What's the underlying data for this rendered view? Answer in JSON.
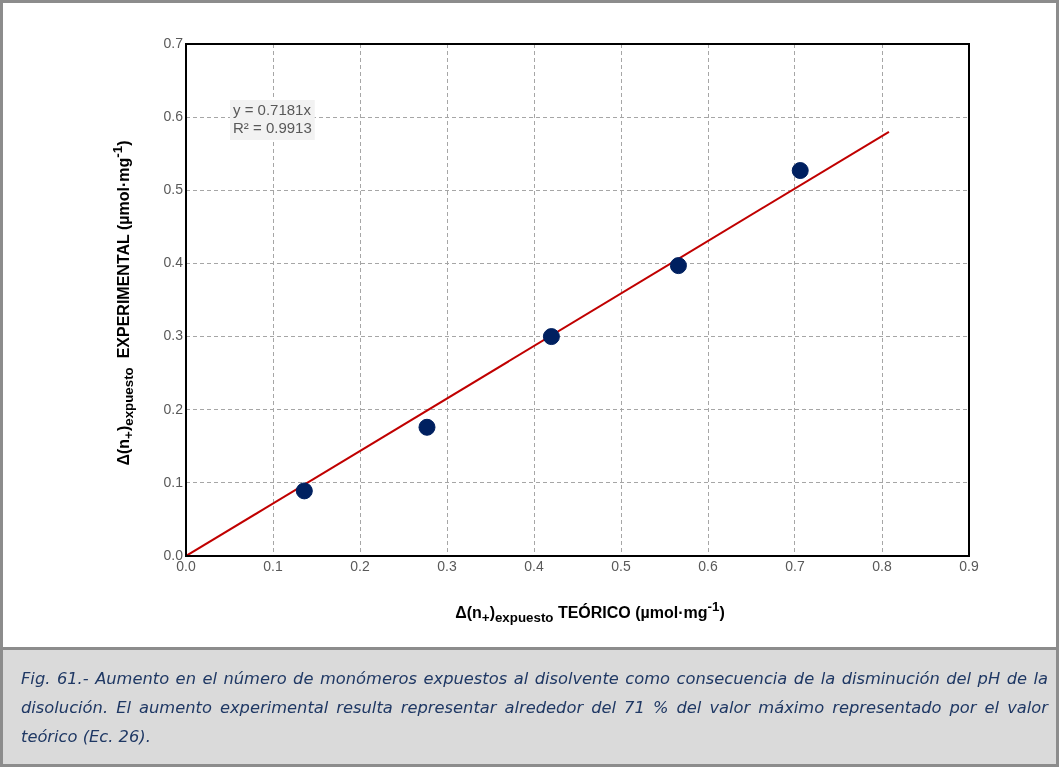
{
  "chart_data": {
    "type": "scatter",
    "xlabel": "Δ(n$_{+}$)$_{expuesto}$ TEÓRICO (µmol·mg$^{-1}$)",
    "ylabel": "Δ(n$_{+}$)$_{expuesto}$  EXPERIMENTAL (µmol·mg$^{-1}$)",
    "xlim": [
      0,
      0.9
    ],
    "xticks": [
      {
        "value": 0,
        "label": "0.0"
      },
      0.1,
      0.2,
      0.3,
      0.4,
      0.5,
      0.6,
      0.7,
      0.8,
      0.9
    ],
    "ylim": [
      0,
      0.7
    ],
    "yticks": [
      {
        "value": 0,
        "label": "0.0"
      },
      0.1,
      0.2,
      0.3,
      0.4,
      0.5,
      0.6,
      0.7
    ],
    "grid": true,
    "legend": false,
    "series": [
      {
        "marker": "circle",
        "color": "#002060",
        "x": [
          0.136,
          0.277,
          0.42,
          0.566,
          0.706
        ],
        "values": [
          0.089,
          0.176,
          0.3,
          0.397,
          0.527
        ]
      },
      {
        "type": "line",
        "marker": "none",
        "color": "#c00000",
        "x": [
          0,
          0.808
        ],
        "values": [
          0,
          0.58
        ]
      }
    ],
    "annotations": [
      "y = 0.7181x\nR² = 0.9913",
      "Fig. 61.- Aumento en el número de monómeros expuestos al disolvente como consecuencia de la disminución del pH de la disolución. El aumento experimental resulta representar alrededor del 71 % del valor máximo representado por el valor teórico (Ec. 26)."
    ]
  }
}
